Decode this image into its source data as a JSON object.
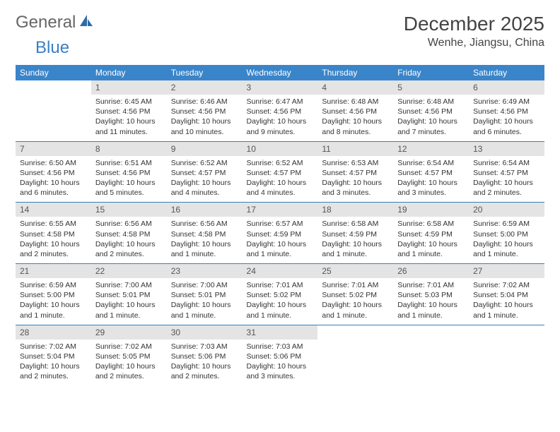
{
  "logo": {
    "text1": "General",
    "text2": "Blue"
  },
  "title": "December 2025",
  "location": "Wenhe, Jiangsu, China",
  "colors": {
    "header_bg": "#3a85c9",
    "header_text": "#ffffff",
    "daynum_bg": "#e4e4e4",
    "rule": "#3a7fb8",
    "logo_blue": "#3a7fc4",
    "text": "#333333"
  },
  "dow": [
    "Sunday",
    "Monday",
    "Tuesday",
    "Wednesday",
    "Thursday",
    "Friday",
    "Saturday"
  ],
  "weeks": [
    [
      null,
      {
        "n": "1",
        "sr": "Sunrise: 6:45 AM",
        "ss": "Sunset: 4:56 PM",
        "d1": "Daylight: 10 hours",
        "d2": "and 11 minutes."
      },
      {
        "n": "2",
        "sr": "Sunrise: 6:46 AM",
        "ss": "Sunset: 4:56 PM",
        "d1": "Daylight: 10 hours",
        "d2": "and 10 minutes."
      },
      {
        "n": "3",
        "sr": "Sunrise: 6:47 AM",
        "ss": "Sunset: 4:56 PM",
        "d1": "Daylight: 10 hours",
        "d2": "and 9 minutes."
      },
      {
        "n": "4",
        "sr": "Sunrise: 6:48 AM",
        "ss": "Sunset: 4:56 PM",
        "d1": "Daylight: 10 hours",
        "d2": "and 8 minutes."
      },
      {
        "n": "5",
        "sr": "Sunrise: 6:48 AM",
        "ss": "Sunset: 4:56 PM",
        "d1": "Daylight: 10 hours",
        "d2": "and 7 minutes."
      },
      {
        "n": "6",
        "sr": "Sunrise: 6:49 AM",
        "ss": "Sunset: 4:56 PM",
        "d1": "Daylight: 10 hours",
        "d2": "and 6 minutes."
      }
    ],
    [
      {
        "n": "7",
        "sr": "Sunrise: 6:50 AM",
        "ss": "Sunset: 4:56 PM",
        "d1": "Daylight: 10 hours",
        "d2": "and 6 minutes."
      },
      {
        "n": "8",
        "sr": "Sunrise: 6:51 AM",
        "ss": "Sunset: 4:56 PM",
        "d1": "Daylight: 10 hours",
        "d2": "and 5 minutes."
      },
      {
        "n": "9",
        "sr": "Sunrise: 6:52 AM",
        "ss": "Sunset: 4:57 PM",
        "d1": "Daylight: 10 hours",
        "d2": "and 4 minutes."
      },
      {
        "n": "10",
        "sr": "Sunrise: 6:52 AM",
        "ss": "Sunset: 4:57 PM",
        "d1": "Daylight: 10 hours",
        "d2": "and 4 minutes."
      },
      {
        "n": "11",
        "sr": "Sunrise: 6:53 AM",
        "ss": "Sunset: 4:57 PM",
        "d1": "Daylight: 10 hours",
        "d2": "and 3 minutes."
      },
      {
        "n": "12",
        "sr": "Sunrise: 6:54 AM",
        "ss": "Sunset: 4:57 PM",
        "d1": "Daylight: 10 hours",
        "d2": "and 3 minutes."
      },
      {
        "n": "13",
        "sr": "Sunrise: 6:54 AM",
        "ss": "Sunset: 4:57 PM",
        "d1": "Daylight: 10 hours",
        "d2": "and 2 minutes."
      }
    ],
    [
      {
        "n": "14",
        "sr": "Sunrise: 6:55 AM",
        "ss": "Sunset: 4:58 PM",
        "d1": "Daylight: 10 hours",
        "d2": "and 2 minutes."
      },
      {
        "n": "15",
        "sr": "Sunrise: 6:56 AM",
        "ss": "Sunset: 4:58 PM",
        "d1": "Daylight: 10 hours",
        "d2": "and 2 minutes."
      },
      {
        "n": "16",
        "sr": "Sunrise: 6:56 AM",
        "ss": "Sunset: 4:58 PM",
        "d1": "Daylight: 10 hours",
        "d2": "and 1 minute."
      },
      {
        "n": "17",
        "sr": "Sunrise: 6:57 AM",
        "ss": "Sunset: 4:59 PM",
        "d1": "Daylight: 10 hours",
        "d2": "and 1 minute."
      },
      {
        "n": "18",
        "sr": "Sunrise: 6:58 AM",
        "ss": "Sunset: 4:59 PM",
        "d1": "Daylight: 10 hours",
        "d2": "and 1 minute."
      },
      {
        "n": "19",
        "sr": "Sunrise: 6:58 AM",
        "ss": "Sunset: 4:59 PM",
        "d1": "Daylight: 10 hours",
        "d2": "and 1 minute."
      },
      {
        "n": "20",
        "sr": "Sunrise: 6:59 AM",
        "ss": "Sunset: 5:00 PM",
        "d1": "Daylight: 10 hours",
        "d2": "and 1 minute."
      }
    ],
    [
      {
        "n": "21",
        "sr": "Sunrise: 6:59 AM",
        "ss": "Sunset: 5:00 PM",
        "d1": "Daylight: 10 hours",
        "d2": "and 1 minute."
      },
      {
        "n": "22",
        "sr": "Sunrise: 7:00 AM",
        "ss": "Sunset: 5:01 PM",
        "d1": "Daylight: 10 hours",
        "d2": "and 1 minute."
      },
      {
        "n": "23",
        "sr": "Sunrise: 7:00 AM",
        "ss": "Sunset: 5:01 PM",
        "d1": "Daylight: 10 hours",
        "d2": "and 1 minute."
      },
      {
        "n": "24",
        "sr": "Sunrise: 7:01 AM",
        "ss": "Sunset: 5:02 PM",
        "d1": "Daylight: 10 hours",
        "d2": "and 1 minute."
      },
      {
        "n": "25",
        "sr": "Sunrise: 7:01 AM",
        "ss": "Sunset: 5:02 PM",
        "d1": "Daylight: 10 hours",
        "d2": "and 1 minute."
      },
      {
        "n": "26",
        "sr": "Sunrise: 7:01 AM",
        "ss": "Sunset: 5:03 PM",
        "d1": "Daylight: 10 hours",
        "d2": "and 1 minute."
      },
      {
        "n": "27",
        "sr": "Sunrise: 7:02 AM",
        "ss": "Sunset: 5:04 PM",
        "d1": "Daylight: 10 hours",
        "d2": "and 1 minute."
      }
    ],
    [
      {
        "n": "28",
        "sr": "Sunrise: 7:02 AM",
        "ss": "Sunset: 5:04 PM",
        "d1": "Daylight: 10 hours",
        "d2": "and 2 minutes."
      },
      {
        "n": "29",
        "sr": "Sunrise: 7:02 AM",
        "ss": "Sunset: 5:05 PM",
        "d1": "Daylight: 10 hours",
        "d2": "and 2 minutes."
      },
      {
        "n": "30",
        "sr": "Sunrise: 7:03 AM",
        "ss": "Sunset: 5:06 PM",
        "d1": "Daylight: 10 hours",
        "d2": "and 2 minutes."
      },
      {
        "n": "31",
        "sr": "Sunrise: 7:03 AM",
        "ss": "Sunset: 5:06 PM",
        "d1": "Daylight: 10 hours",
        "d2": "and 3 minutes."
      },
      null,
      null,
      null
    ]
  ]
}
